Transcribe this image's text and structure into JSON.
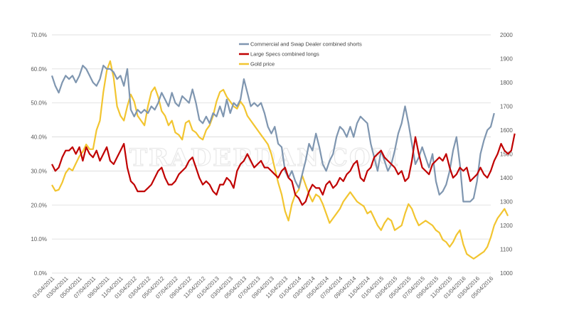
{
  "chart_data": {
    "type": "line",
    "title": "",
    "watermark": "TRADERDAN.COM",
    "xlabel": "",
    "ylabel_left": "",
    "ylabel_right": "",
    "ylim_left": [
      0,
      70
    ],
    "ylim_right": [
      1000,
      2000
    ],
    "left_ticks": [
      "0.0%",
      "10.0%",
      "20.0%",
      "30.0%",
      "40.0%",
      "50.0%",
      "60.0%",
      "70.0%"
    ],
    "left_tick_values": [
      0,
      10,
      20,
      30,
      40,
      50,
      60,
      70
    ],
    "right_ticks": [
      "1000",
      "1100",
      "1200",
      "1300",
      "1400",
      "1500",
      "1600",
      "1700",
      "1800",
      "1900",
      "2000"
    ],
    "right_tick_values": [
      1000,
      1100,
      1200,
      1300,
      1400,
      1500,
      1600,
      1700,
      1800,
      1900,
      2000
    ],
    "x_tick_labels": [
      "01/04/2011",
      "03/04/2011",
      "05/04/2011",
      "07/04/2011",
      "09/04/2011",
      "11/04/2011",
      "01/04/2012",
      "03/04/2012",
      "05/04/2012",
      "07/04/2012",
      "09/04/2012",
      "11/04/2012",
      "01/04/2013",
      "03/04/2013",
      "05/04/2013",
      "07/04/2013",
      "09/04/2013",
      "11/04/2013",
      "01/04/2014",
      "03/04/2014",
      "05/04/2014",
      "07/04/2014",
      "09/04/2014",
      "11/04/2014",
      "01/04/2015",
      "03/04/2015",
      "05/04/2015",
      "07/04/2015",
      "09/04/2015",
      "11/04/2015",
      "01/04/2016",
      "03/04/2016",
      "05/04/2016"
    ],
    "x_range_months": [
      0,
      64
    ],
    "x_start_month_offset": 3,
    "grid": true,
    "legend_position": "top-center",
    "series": [
      {
        "name": "Commercial and Swap Dealer combined shorts",
        "axis": "left",
        "color": "#7f96b0",
        "start_month": 3,
        "step_months": 0.5,
        "values": [
          58,
          55,
          53,
          56,
          58,
          57,
          58,
          56,
          58,
          61,
          60,
          58,
          56,
          55,
          57,
          61,
          60,
          60,
          59,
          57,
          58,
          55,
          60,
          48,
          46,
          48,
          47,
          48,
          47,
          49,
          48,
          50,
          53,
          51,
          49,
          53,
          50,
          49,
          52,
          51,
          50,
          54,
          50,
          45,
          44,
          46,
          44,
          47,
          46,
          49,
          46,
          51,
          47,
          50,
          49,
          51,
          57,
          53,
          49,
          50,
          49,
          50,
          47,
          43,
          41,
          43,
          38,
          37,
          30,
          28,
          30,
          27,
          25,
          29,
          33,
          38,
          36,
          41,
          37,
          32,
          30,
          33,
          35,
          40,
          43,
          42,
          40,
          43,
          40,
          44,
          46,
          45,
          44,
          38,
          34,
          30,
          36,
          33,
          30,
          32,
          36,
          41,
          44,
          49,
          44,
          38,
          32,
          34,
          37,
          34,
          31,
          35,
          27,
          23,
          24,
          26,
          30,
          36,
          40,
          32,
          21,
          21,
          21,
          22,
          27,
          35,
          39,
          42,
          43,
          47
        ]
      },
      {
        "name": "Large Specs combined longs",
        "axis": "left",
        "color": "#c00000",
        "start_month": 3,
        "step_months": 0.5,
        "values": [
          32,
          30,
          31,
          34,
          36,
          36,
          37,
          35,
          37,
          33,
          37,
          35,
          34,
          36,
          33,
          35,
          37,
          33,
          32,
          34,
          36,
          38,
          31,
          27,
          26,
          24,
          24,
          24,
          25,
          26,
          28,
          30,
          31,
          28,
          26,
          26,
          27,
          29,
          30,
          31,
          33,
          34,
          31,
          28,
          26,
          27,
          26,
          24,
          23,
          26,
          26,
          28,
          27,
          25,
          30,
          32,
          33,
          35,
          33,
          31,
          32,
          33,
          31,
          31,
          30,
          29,
          28,
          30,
          31,
          28,
          27,
          23,
          22,
          20,
          21,
          24,
          26,
          25,
          25,
          23,
          26,
          27,
          25,
          26,
          28,
          27,
          29,
          30,
          32,
          33,
          28,
          27,
          30,
          31,
          34,
          35,
          36,
          34,
          33,
          32,
          31,
          29,
          30,
          27,
          28,
          33,
          40,
          35,
          31,
          30,
          29,
          32,
          33,
          34,
          33,
          35,
          31,
          28,
          29,
          31,
          30,
          31,
          27,
          28,
          29,
          31,
          29,
          28,
          30,
          33,
          35,
          38,
          36,
          35,
          36,
          41
        ]
      },
      {
        "name": "Gold price",
        "axis": "right",
        "color": "#f2c530",
        "start_month": 3,
        "step_months": 0.5,
        "values": [
          1370,
          1345,
          1350,
          1380,
          1420,
          1440,
          1430,
          1460,
          1490,
          1510,
          1540,
          1520,
          1520,
          1600,
          1640,
          1760,
          1850,
          1890,
          1820,
          1700,
          1660,
          1640,
          1700,
          1750,
          1720,
          1660,
          1640,
          1620,
          1700,
          1760,
          1780,
          1740,
          1680,
          1660,
          1620,
          1640,
          1590,
          1580,
          1560,
          1630,
          1640,
          1600,
          1590,
          1570,
          1560,
          1600,
          1620,
          1660,
          1720,
          1760,
          1770,
          1740,
          1720,
          1700,
          1690,
          1720,
          1700,
          1660,
          1640,
          1620,
          1600,
          1580,
          1560,
          1540,
          1500,
          1440,
          1380,
          1330,
          1260,
          1220,
          1290,
          1330,
          1350,
          1410,
          1370,
          1330,
          1300,
          1330,
          1320,
          1290,
          1250,
          1210,
          1230,
          1250,
          1270,
          1300,
          1320,
          1340,
          1320,
          1300,
          1290,
          1280,
          1250,
          1260,
          1230,
          1200,
          1180,
          1210,
          1230,
          1220,
          1180,
          1190,
          1200,
          1250,
          1290,
          1270,
          1230,
          1200,
          1210,
          1220,
          1210,
          1200,
          1180,
          1170,
          1140,
          1130,
          1110,
          1130,
          1160,
          1180,
          1120,
          1080,
          1070,
          1060,
          1070,
          1080,
          1090,
          1110,
          1150,
          1200,
          1230,
          1250,
          1270,
          1240
        ]
      }
    ]
  }
}
